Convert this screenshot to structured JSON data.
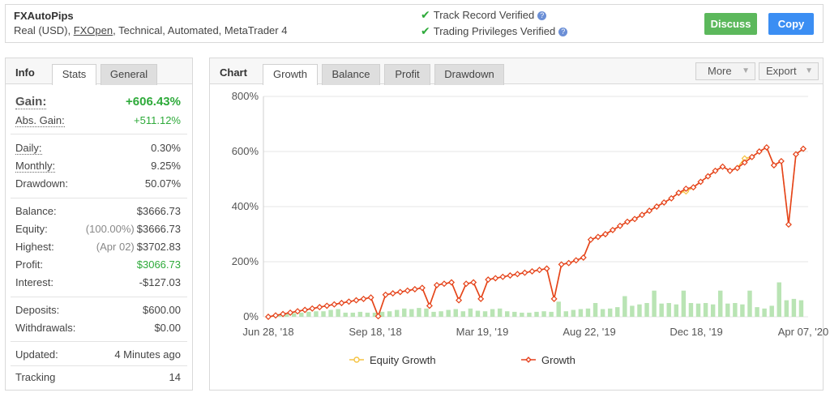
{
  "header": {
    "name": "FXAutoPips",
    "meta_prefix": "Real (USD), ",
    "broker": "FXOpen",
    "meta_suffix": ", Technical, Automated, MetaTrader 4",
    "track_record": "Track Record Verified",
    "trading_privileges": "Trading Privileges Verified",
    "discuss_label": "Discuss",
    "copy_label": "Copy"
  },
  "info": {
    "title": "Info",
    "tabs": [
      "Stats",
      "General"
    ],
    "rows": {
      "gain": {
        "label": "Gain:",
        "value": "+606.43%"
      },
      "abs_gain": {
        "label": "Abs. Gain:",
        "value": "+511.12%"
      },
      "daily": {
        "label": "Daily:",
        "value": "0.30%"
      },
      "monthly": {
        "label": "Monthly:",
        "value": "9.25%"
      },
      "drawdown": {
        "label": "Drawdown:",
        "value": "50.07%"
      },
      "balance": {
        "label": "Balance:",
        "value": "$3666.73"
      },
      "equity": {
        "label": "Equity:",
        "sub": "(100.00%)",
        "value": "$3666.73"
      },
      "highest": {
        "label": "Highest:",
        "sub": "(Apr 02)",
        "value": "$3702.83"
      },
      "profit": {
        "label": "Profit:",
        "value": "$3066.73"
      },
      "interest": {
        "label": "Interest:",
        "value": "-$127.03"
      },
      "deposits": {
        "label": "Deposits:",
        "value": "$600.00"
      },
      "withdrawals": {
        "label": "Withdrawals:",
        "value": "$0.00"
      },
      "updated": {
        "label": "Updated:",
        "value": "4 Minutes ago"
      },
      "tracking": {
        "label": "Tracking",
        "value": "14"
      }
    }
  },
  "chart_panel": {
    "title": "Chart",
    "tabs": [
      "Growth",
      "Balance",
      "Profit",
      "Drawdown"
    ],
    "more_label": "More",
    "export_label": "Export"
  },
  "colors": {
    "growth": "#e5411e",
    "equity": "#f5c342",
    "bars": "#b9e4b4",
    "green": "#2eaa3a",
    "blue": "#3b8ef3"
  },
  "chart_data": {
    "type": "line",
    "y_ticks": [
      "0%",
      "200%",
      "400%",
      "600%",
      "800%"
    ],
    "x_ticks": [
      "Jun 28, '18",
      "Sep 18, '18",
      "Mar 19, '19",
      "Aug 22, '19",
      "Dec 18, '19",
      "Apr 07, '20"
    ],
    "ylim": [
      0,
      800
    ],
    "legend": [
      "Equity Growth",
      "Growth"
    ],
    "legend_position": "bottom",
    "series": [
      {
        "name": "Growth",
        "values": [
          0,
          5,
          10,
          15,
          20,
          25,
          30,
          35,
          40,
          45,
          50,
          55,
          60,
          65,
          70,
          2,
          80,
          85,
          90,
          95,
          100,
          105,
          40,
          115,
          120,
          125,
          60,
          120,
          125,
          65,
          135,
          140,
          145,
          150,
          155,
          160,
          165,
          170,
          175,
          65,
          190,
          195,
          205,
          215,
          280,
          290,
          300,
          315,
          330,
          345,
          355,
          370,
          385,
          400,
          415,
          430,
          450,
          465,
          470,
          490,
          510,
          530,
          545,
          530,
          540,
          560,
          580,
          600,
          615,
          550,
          565,
          335,
          590,
          610
        ]
      },
      {
        "name": "Equity Growth",
        "values": [
          0,
          5,
          10,
          15,
          20,
          25,
          30,
          35,
          40,
          45,
          50,
          55,
          60,
          65,
          70,
          2,
          80,
          85,
          90,
          95,
          100,
          105,
          40,
          115,
          120,
          125,
          60,
          120,
          125,
          65,
          135,
          140,
          145,
          150,
          155,
          160,
          165,
          170,
          175,
          65,
          190,
          195,
          205,
          215,
          280,
          290,
          300,
          315,
          330,
          345,
          355,
          370,
          385,
          400,
          415,
          430,
          450,
          455,
          470,
          490,
          510,
          530,
          545,
          530,
          540,
          575,
          580,
          600,
          615,
          550,
          565,
          335,
          590,
          610
        ]
      }
    ],
    "bars": [
      3,
      6,
      10,
      13,
      15,
      18,
      20,
      20,
      25,
      28,
      15,
      15,
      18,
      15,
      15,
      18,
      20,
      25,
      30,
      28,
      32,
      30,
      18,
      20,
      25,
      28,
      20,
      30,
      22,
      20,
      28,
      30,
      20,
      18,
      15,
      15,
      18,
      20,
      18,
      55,
      20,
      25,
      28,
      30,
      50,
      28,
      30,
      35,
      75,
      40,
      45,
      50,
      95,
      48,
      50,
      45,
      95,
      50,
      48,
      50,
      45,
      95,
      48,
      50,
      45,
      95,
      35,
      30,
      40,
      125,
      60,
      65,
      60
    ]
  }
}
